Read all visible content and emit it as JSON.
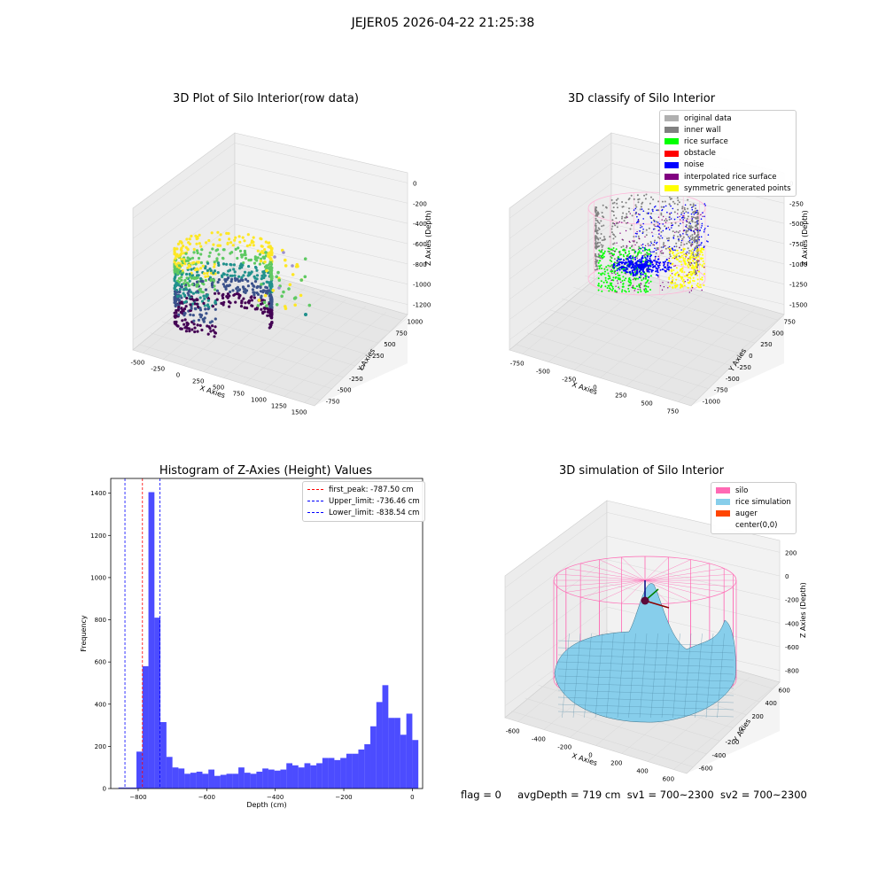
{
  "suptitle": "JEJER05 2026-04-22 21:25:38",
  "status": {
    "flag": "flag = 0",
    "avg_depth": "avgDepth = 719 cm",
    "sv1": "sv1 = 700~2300",
    "sv2": "sv2 = 700~2300"
  },
  "chart_data": [
    {
      "type": "scatter",
      "title": "3D Plot of Silo Interior(row data)",
      "xlabel": "X Axies",
      "ylabel": "Y Axies",
      "zlabel": "Z Axies (Depth)",
      "x_ticks": [
        "-500",
        "-250",
        "0",
        "250",
        "500",
        "750",
        "1000",
        "1250",
        "1500"
      ],
      "y_ticks": [
        "-750",
        "-500",
        "-250",
        "0",
        "250",
        "500",
        "750",
        "1000"
      ],
      "z_ticks": [
        "0",
        "-200",
        "-400",
        "-600",
        "-800",
        "-1000",
        "-1200"
      ],
      "colormap": "viridis",
      "description_free": true
    },
    {
      "type": "scatter",
      "title": "3D classify of Silo Interior",
      "xlabel": "X Axies",
      "ylabel": "Y Axies",
      "zlabel": "Z Axies (Depth)",
      "x_ticks": [
        "-750",
        "-500",
        "-250",
        "0",
        "250",
        "500",
        "750"
      ],
      "y_ticks": [
        "-1000",
        "-750",
        "-500",
        "-250",
        "0",
        "250",
        "500",
        "750"
      ],
      "z_ticks": [
        "0",
        "-250",
        "-500",
        "-750",
        "-1000",
        "-1250",
        "-1500"
      ],
      "legend": [
        {
          "name": "original data",
          "color": "#b0b0b0"
        },
        {
          "name": "inner wall",
          "color": "#808080"
        },
        {
          "name": "rice surface",
          "color": "#00ff00"
        },
        {
          "name": "obstacle",
          "color": "#ff0000"
        },
        {
          "name": "noise",
          "color": "#0000ff"
        },
        {
          "name": "interpolated rice surface",
          "color": "#800080"
        },
        {
          "name": "symmetric generated points",
          "color": "#ffff00"
        }
      ]
    },
    {
      "type": "bar",
      "title": "Histogram of Z-Axies (Height) Values",
      "xlabel": "Depth (cm)",
      "ylabel": "Frequency",
      "xlim": [
        -880,
        30
      ],
      "ylim": [
        0,
        1470
      ],
      "bin_width": 17.5,
      "bin_start": -857.5,
      "values": [
        5,
        5,
        5,
        175,
        580,
        1405,
        810,
        315,
        150,
        100,
        95,
        70,
        75,
        80,
        70,
        90,
        60,
        65,
        70,
        70,
        100,
        75,
        70,
        80,
        95,
        90,
        85,
        90,
        120,
        110,
        100,
        120,
        110,
        120,
        145,
        145,
        135,
        145,
        165,
        165,
        185,
        210,
        295,
        410,
        490,
        335,
        335,
        255,
        355,
        230
      ],
      "x_ticks": [
        -800,
        -600,
        -400,
        -200,
        0
      ],
      "y_ticks": [
        0,
        200,
        400,
        600,
        800,
        1000,
        1200,
        1400
      ],
      "bar_color": "#0000ff",
      "lines": [
        {
          "label": "first_peak: -787.50 cm",
          "value": -787.5,
          "color": "#ff0000"
        },
        {
          "label": "Upper_limit: -736.46 cm",
          "value": -736.46,
          "color": "#0000ff"
        },
        {
          "label": "Lower_limit: -838.54 cm",
          "value": -838.54,
          "color": "#0000ff"
        }
      ],
      "legend_position": "top-right"
    },
    {
      "type": "surface",
      "title": "3D simulation of Silo Interior",
      "xlabel": "X Axies",
      "ylabel": "Y Axies",
      "zlabel": "Z Axies (Depth)",
      "x_ticks": [
        "-600",
        "-400",
        "-200",
        "0",
        "200",
        "400",
        "600"
      ],
      "y_ticks": [
        "-600",
        "-400",
        "-200",
        "0",
        "200",
        "400",
        "600"
      ],
      "z_ticks": [
        "200",
        "0",
        "-200",
        "-400",
        "-600",
        "-800"
      ],
      "legend": [
        {
          "name": "silo",
          "color": "#ff69b4"
        },
        {
          "name": "rice simulation",
          "color": "#87ceeb"
        },
        {
          "name": "auger",
          "color": "#ff4500"
        },
        {
          "name": "center(0,0)",
          "color": "#ffffff"
        }
      ]
    }
  ]
}
